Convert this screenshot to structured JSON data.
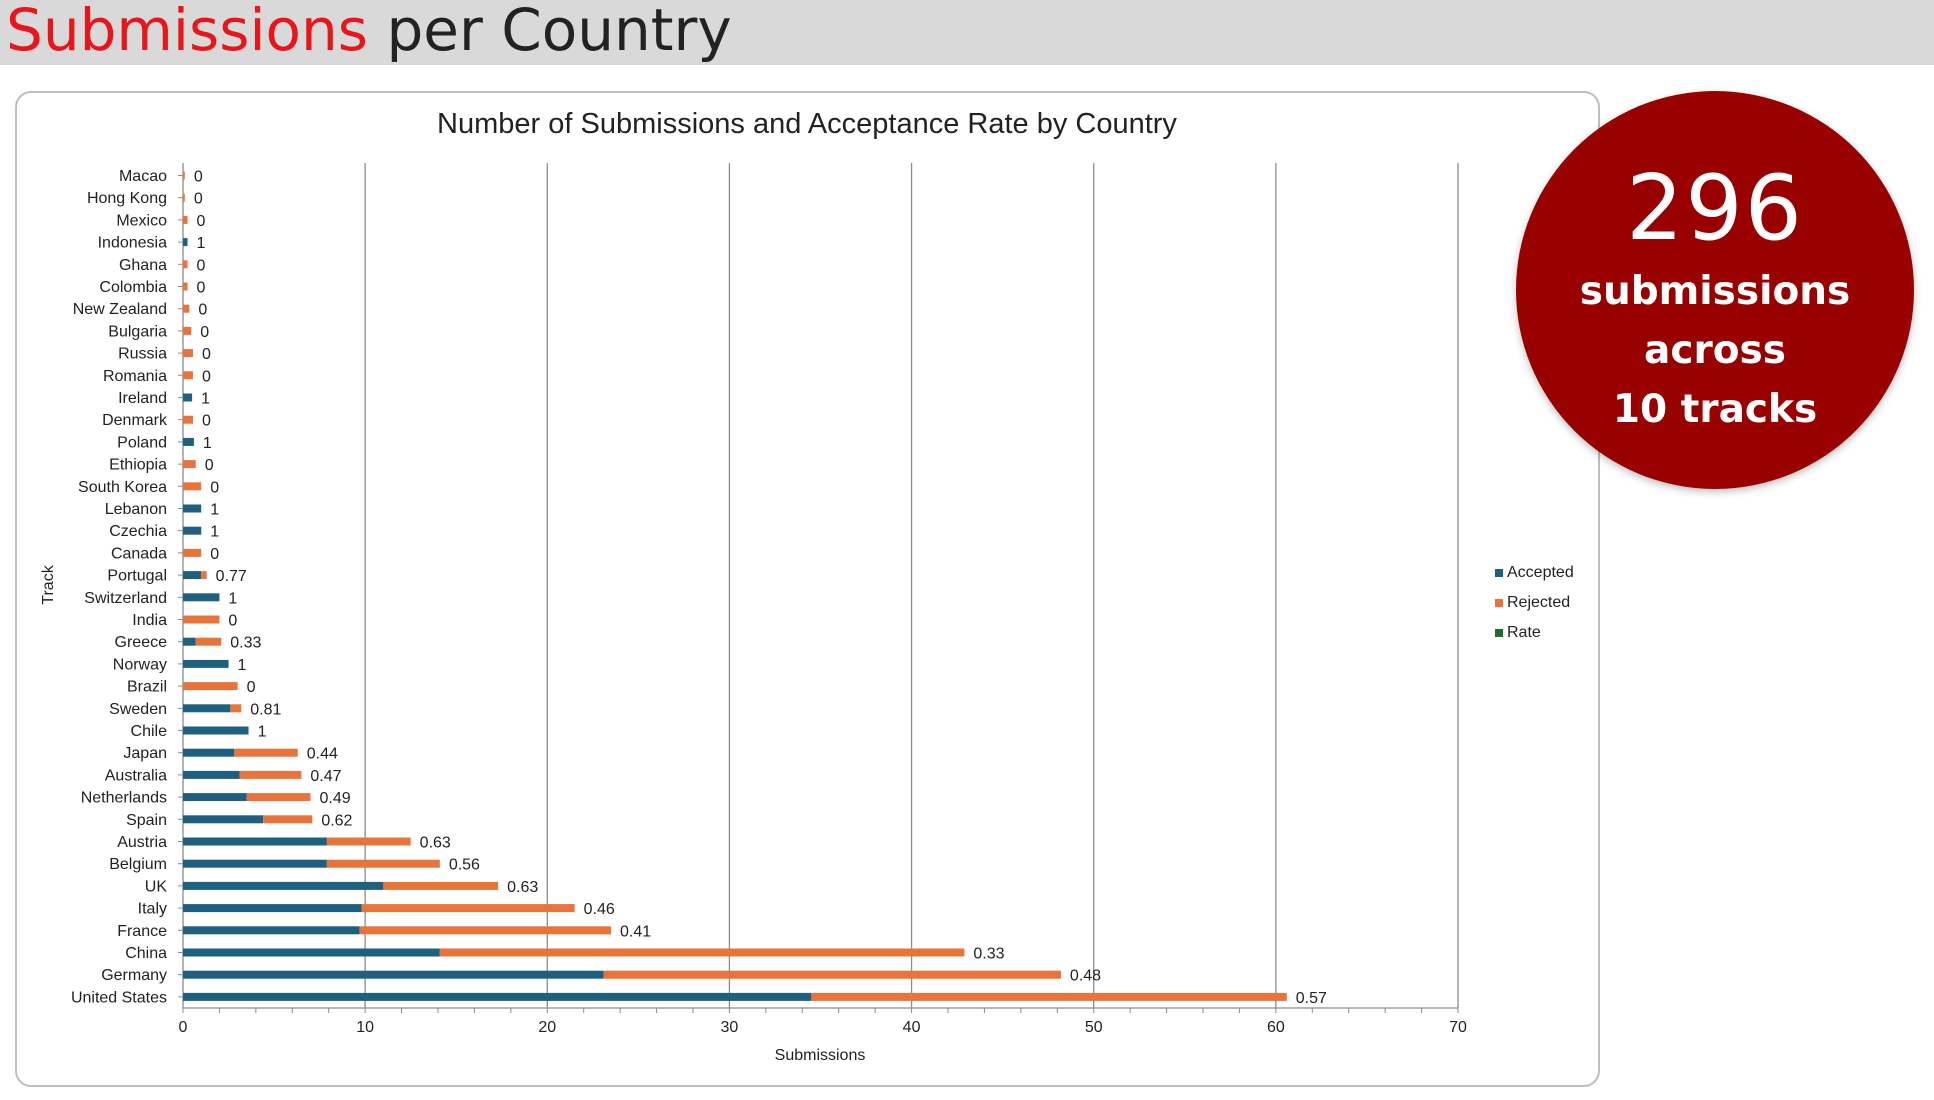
{
  "header": {
    "title_highlight": "Submissions",
    "title_rest": " per Country"
  },
  "badge": {
    "number": "296",
    "line1": "submissions",
    "line2": "across",
    "line3": "10 tracks"
  },
  "colors": {
    "accepted": "#1f5f7f",
    "rejected": "#e8743b",
    "rate": "#1e6b2f",
    "highlight": "#e8161b",
    "badge": "#990000"
  },
  "chart_data": {
    "type": "bar",
    "orientation": "horizontal",
    "stacked": true,
    "title": "Number of Submissions and Acceptance Rate by Country",
    "xlabel": "Submissions",
    "ylabel": "Track",
    "xlim": [
      0,
      70
    ],
    "xticks": [
      0,
      10,
      20,
      30,
      40,
      50,
      60,
      70
    ],
    "grid": "vertical major lines",
    "legend_position": "right",
    "legend": [
      "Accepted",
      "Rejected",
      "Rate"
    ],
    "categories": [
      "Macao",
      "Hong Kong",
      "Mexico",
      "Indonesia",
      "Ghana",
      "Colombia",
      "New Zealand",
      "Bulgaria",
      "Russia",
      "Romania",
      "Ireland",
      "Denmark",
      "Poland",
      "Ethiopia",
      "South Korea",
      "Lebanon",
      "Czechia",
      "Canada",
      "Portugal",
      "Switzerland",
      "India",
      "Greece",
      "Norway",
      "Brazil",
      "Sweden",
      "Chile",
      "Japan",
      "Australia",
      "Netherlands",
      "Spain",
      "Austria",
      "Belgium",
      "UK",
      "Italy",
      "France",
      "China",
      "Germany",
      "United States"
    ],
    "series": [
      {
        "name": "Accepted",
        "values": [
          0,
          0,
          0,
          0.25,
          0,
          0,
          0,
          0,
          0,
          0,
          0.5,
          0,
          0.6,
          0,
          0,
          1,
          1,
          0,
          1.0,
          2,
          0,
          0.7,
          2.5,
          0,
          2.6,
          3.6,
          2.8,
          3.1,
          3.5,
          4.4,
          7.9,
          7.9,
          11.0,
          9.8,
          9.7,
          14.1,
          23.1,
          34.5
        ]
      },
      {
        "name": "Rejected",
        "values": [
          0.1,
          0.1,
          0.25,
          0,
          0.25,
          0.25,
          0.35,
          0.45,
          0.55,
          0.55,
          0,
          0.55,
          0,
          0.7,
          1.0,
          0,
          0,
          1.0,
          0.3,
          0,
          2.0,
          1.4,
          0,
          3.0,
          0.6,
          0,
          3.5,
          3.4,
          3.5,
          2.7,
          4.6,
          6.2,
          6.3,
          11.7,
          13.8,
          28.8,
          25.1,
          26.1
        ]
      }
    ],
    "rate_labels": [
      "0",
      "0",
      "0",
      "1",
      "0",
      "0",
      "0",
      "0",
      "0",
      "0",
      "1",
      "0",
      "1",
      "0",
      "0",
      "1",
      "1",
      "0",
      "0.77",
      "1",
      "0",
      "0.33",
      "1",
      "0",
      "0.81",
      "1",
      "0.44",
      "0.47",
      "0.49",
      "0.62",
      "0.63",
      "0.56",
      "0.63",
      "0.46",
      "0.41",
      "0.33",
      "0.48",
      "0.57"
    ]
  }
}
